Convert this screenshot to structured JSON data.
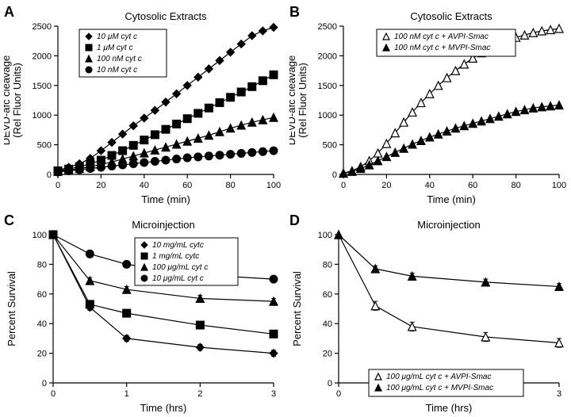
{
  "panelA": {
    "label": "A",
    "title": "Cytosolic Extracts",
    "ylabel": "DEVD-afc cleavage\n(Rel Fluor Units)",
    "xlabel": "Time (min)",
    "xlim": [
      0,
      100
    ],
    "xtick_step": 20,
    "ylim": [
      0,
      2500
    ],
    "ytick_step": 500,
    "series": [
      {
        "name": "10 μM cyt c",
        "marker": "diamond",
        "color": "#000000",
        "x": [
          0,
          5,
          10,
          15,
          20,
          25,
          30,
          35,
          40,
          45,
          50,
          55,
          60,
          65,
          70,
          75,
          80,
          85,
          90,
          95,
          100
        ],
        "y": [
          70,
          120,
          180,
          270,
          400,
          540,
          680,
          820,
          950,
          1080,
          1220,
          1360,
          1500,
          1640,
          1780,
          1920,
          2060,
          2200,
          2340,
          2420,
          2480
        ]
      },
      {
        "name": "1 μM cyt c",
        "marker": "square",
        "color": "#000000",
        "x": [
          0,
          5,
          10,
          15,
          20,
          25,
          30,
          35,
          40,
          45,
          50,
          55,
          60,
          65,
          70,
          75,
          80,
          85,
          90,
          95,
          100
        ],
        "y": [
          60,
          90,
          130,
          180,
          240,
          320,
          400,
          490,
          580,
          670,
          760,
          850,
          940,
          1030,
          1120,
          1210,
          1300,
          1390,
          1480,
          1580,
          1680
        ]
      },
      {
        "name": "100 nM cyt c",
        "marker": "triangle",
        "color": "#000000",
        "x": [
          0,
          5,
          10,
          15,
          20,
          25,
          30,
          35,
          40,
          45,
          50,
          55,
          60,
          65,
          70,
          75,
          80,
          85,
          90,
          95,
          100
        ],
        "y": [
          50,
          70,
          100,
          130,
          170,
          210,
          260,
          310,
          360,
          410,
          460,
          510,
          560,
          610,
          660,
          720,
          780,
          830,
          880,
          920,
          960
        ]
      },
      {
        "name": "10 nM cyt c",
        "marker": "circle",
        "color": "#000000",
        "x": [
          0,
          5,
          10,
          15,
          20,
          25,
          30,
          35,
          40,
          45,
          50,
          55,
          60,
          65,
          70,
          75,
          80,
          85,
          90,
          95,
          100
        ],
        "y": [
          40,
          60,
          80,
          100,
          120,
          140,
          160,
          180,
          200,
          220,
          240,
          260,
          280,
          295,
          310,
          325,
          340,
          355,
          370,
          385,
          400
        ]
      }
    ]
  },
  "panelB": {
    "label": "B",
    "title": "Cytosolic Extracts",
    "ylabel": "DEVD-afc cleavage\n(Rel Fluor Units)",
    "xlabel": "Time (min)",
    "xlim": [
      0,
      100
    ],
    "xtick_step": 20,
    "ylim": [
      0,
      2500
    ],
    "ytick_step": 500,
    "series": [
      {
        "name": "100 nM cyt c + AVPI-Smac",
        "marker": "triangle-open",
        "color": "#000000",
        "x": [
          0,
          4,
          8,
          12,
          16,
          20,
          24,
          28,
          32,
          36,
          40,
          44,
          48,
          52,
          56,
          60,
          64,
          68,
          72,
          76,
          80,
          84,
          88,
          92,
          96,
          100
        ],
        "y": [
          20,
          60,
          130,
          230,
          360,
          520,
          700,
          880,
          1050,
          1210,
          1360,
          1500,
          1630,
          1750,
          1860,
          1960,
          2050,
          2130,
          2200,
          2260,
          2310,
          2350,
          2390,
          2420,
          2440,
          2460
        ]
      },
      {
        "name": "100 nM cyt c + MVPI-Smac",
        "marker": "triangle",
        "color": "#000000",
        "x": [
          0,
          4,
          8,
          12,
          16,
          20,
          24,
          28,
          32,
          36,
          40,
          44,
          48,
          52,
          56,
          60,
          64,
          68,
          72,
          76,
          80,
          84,
          88,
          92,
          96,
          100
        ],
        "y": [
          20,
          50,
          100,
          160,
          230,
          300,
          370,
          440,
          510,
          570,
          630,
          680,
          730,
          780,
          820,
          860,
          900,
          940,
          980,
          1020,
          1060,
          1090,
          1120,
          1140,
          1155,
          1170
        ]
      }
    ]
  },
  "panelC": {
    "label": "C",
    "title": "Microinjection",
    "ylabel": "Percent Survival",
    "xlabel": "Time (hrs)",
    "xlim": [
      0,
      3
    ],
    "xtick_step": 1,
    "ylim": [
      0,
      100
    ],
    "ytick_step": 20,
    "series": [
      {
        "name": "10 mg/mL cytc",
        "marker": "diamond",
        "color": "#000000",
        "x": [
          0,
          0.5,
          1,
          2,
          3
        ],
        "y": [
          100,
          51,
          30,
          24,
          20
        ],
        "err": [
          0,
          2,
          2,
          2,
          2
        ]
      },
      {
        "name": "1 mg/mL cytc",
        "marker": "square",
        "color": "#000000",
        "x": [
          0,
          0.5,
          1,
          2,
          3
        ],
        "y": [
          100,
          53,
          47,
          39,
          33
        ],
        "err": [
          0,
          2,
          2,
          2,
          2
        ]
      },
      {
        "name": "100 μg/mL cyt c",
        "marker": "triangle",
        "color": "#000000",
        "x": [
          0,
          0.5,
          1,
          2,
          3
        ],
        "y": [
          100,
          69,
          63,
          57,
          55
        ],
        "err": [
          0,
          2,
          2,
          2,
          2
        ]
      },
      {
        "name": "10 μg/mL cyt c",
        "marker": "circle",
        "color": "#000000",
        "x": [
          0,
          0.5,
          1,
          2,
          3
        ],
        "y": [
          100,
          87,
          80,
          73,
          70
        ],
        "err": [
          0,
          2,
          2,
          2,
          2
        ]
      }
    ]
  },
  "panelD": {
    "label": "D",
    "title": "Microinjection",
    "ylabel": "Percent Survival",
    "xlabel": "Time (hrs)",
    "xlim": [
      0,
      3
    ],
    "xtick_step": 1,
    "ylim": [
      0,
      100
    ],
    "ytick_step": 20,
    "series": [
      {
        "name": "100 μg/mL cyt c + AVPI-Smac",
        "marker": "triangle-open",
        "color": "#000000",
        "x": [
          0,
          0.5,
          1,
          2,
          3
        ],
        "y": [
          100,
          52,
          38,
          31,
          27
        ],
        "err": [
          0,
          3,
          3,
          3,
          3
        ]
      },
      {
        "name": "100 μg/mL cyt c + MVPI-Smac",
        "marker": "triangle",
        "color": "#000000",
        "x": [
          0,
          0.5,
          1,
          2,
          3
        ],
        "y": [
          100,
          77,
          72,
          68,
          65
        ],
        "err": [
          0,
          2,
          2,
          2,
          2
        ]
      }
    ]
  },
  "style": {
    "axis_color": "#000000",
    "axis_width": 1.2,
    "tick_len": 5,
    "tick_font": 11,
    "label_font": 13,
    "title_font": 13,
    "marker_size": 5,
    "line_width": 1.2,
    "legend_font": 10
  }
}
